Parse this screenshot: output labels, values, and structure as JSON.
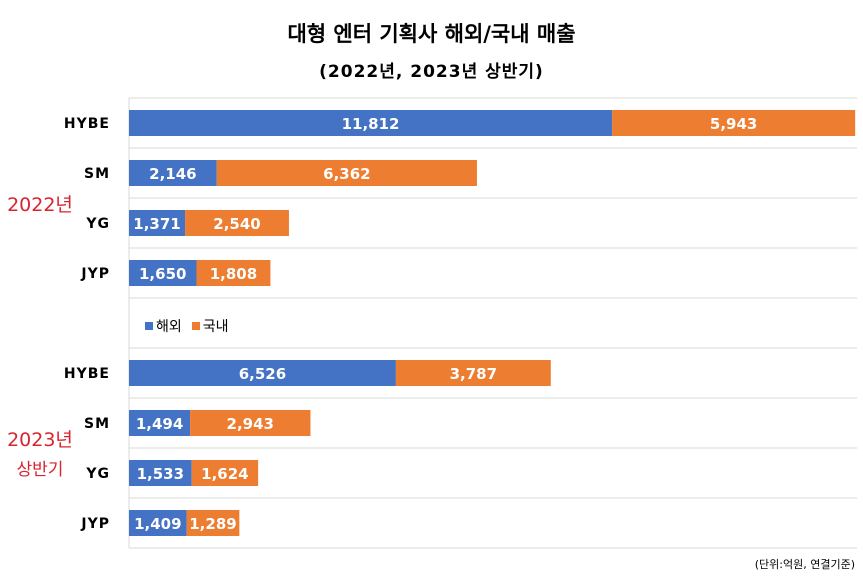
{
  "chart_data": {
    "type": "bar",
    "orientation": "horizontal",
    "stacked": true,
    "title": "대형 엔터 기획사 해외/국내 매출",
    "subtitle": "(2022년, 2023년 상반기)",
    "unit_note": "(단위:억원, 연결기준)",
    "series": [
      {
        "name": "해외",
        "color": "#4472c4"
      },
      {
        "name": "국내",
        "color": "#ed7d31"
      }
    ],
    "groups": [
      {
        "label": "2022년",
        "sublabel": "",
        "rows": [
          {
            "category": "HYBE",
            "overseas": 11812,
            "overseas_label": "11,812",
            "domestic": 5943,
            "domestic_label": "5,943"
          },
          {
            "category": "SM",
            "overseas": 2146,
            "overseas_label": "2,146",
            "domestic": 6362,
            "domestic_label": "6,362"
          },
          {
            "category": "YG",
            "overseas": 1371,
            "overseas_label": "1,371",
            "domestic": 2540,
            "domestic_label": "2,540"
          },
          {
            "category": "JYP",
            "overseas": 1650,
            "overseas_label": "1,650",
            "domestic": 1808,
            "domestic_label": "1,808"
          }
        ]
      },
      {
        "label": "2023년",
        "sublabel": "상반기",
        "rows": [
          {
            "category": "HYBE",
            "overseas": 6526,
            "overseas_label": "6,526",
            "domestic": 3787,
            "domestic_label": "3,787"
          },
          {
            "category": "SM",
            "overseas": 1494,
            "overseas_label": "1,494",
            "domestic": 2943,
            "domestic_label": "2,943"
          },
          {
            "category": "YG",
            "overseas": 1533,
            "overseas_label": "1,533",
            "domestic": 1624,
            "domestic_label": "1,624"
          },
          {
            "category": "JYP",
            "overseas": 1409,
            "overseas_label": "1,409",
            "domestic": 1289,
            "domestic_label": "1,289"
          }
        ]
      }
    ],
    "xlim": [
      0,
      17800
    ],
    "grid": true,
    "legend_position": "middle-left"
  }
}
